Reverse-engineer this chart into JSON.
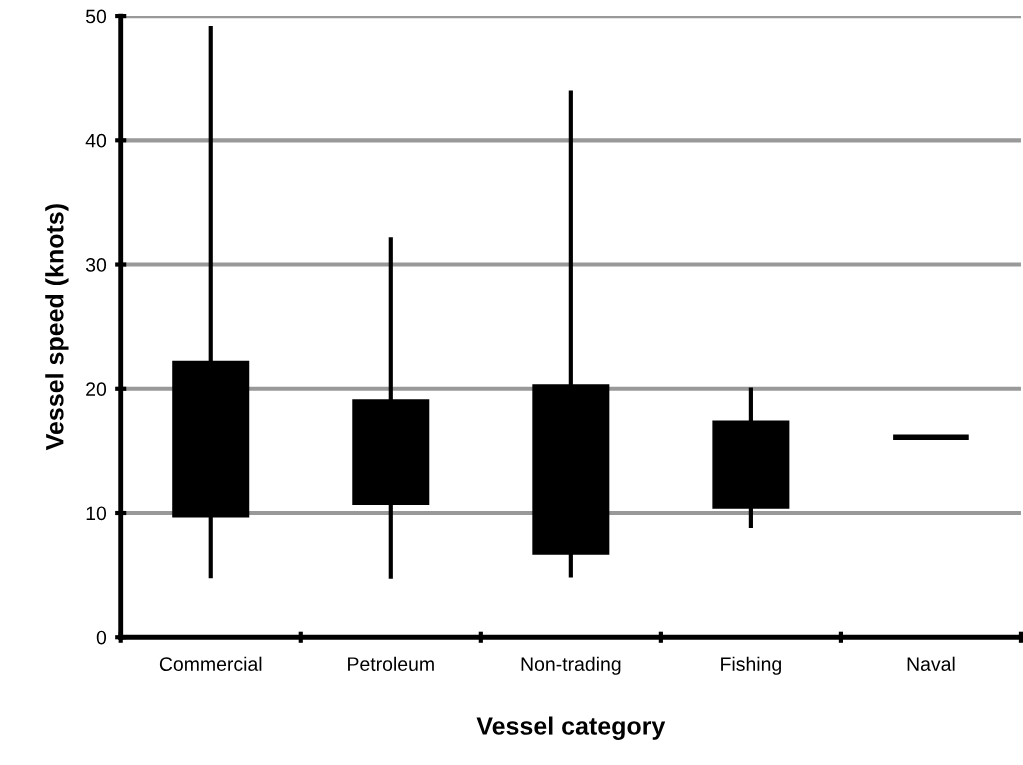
{
  "chart_data": {
    "type": "candlestick",
    "xlabel": "Vessel category",
    "ylabel": "Vessel speed (knots)",
    "categories": [
      "Commercial",
      "Petroleum",
      "Non-trading",
      "Fishing",
      "Naval"
    ],
    "ohlc": [
      [
        22.2,
        49.2,
        4.75,
        9.7
      ],
      [
        19.1,
        32.2,
        4.7,
        10.7
      ],
      [
        20.3,
        44.0,
        4.8,
        6.7
      ],
      [
        17.4,
        20.1,
        8.8,
        10.4
      ],
      [
        16.1,
        16.1,
        16.1,
        16.1
      ]
    ],
    "color": "#000000",
    "ylim": [
      0,
      50
    ],
    "yticks": [
      0,
      10,
      20,
      30,
      40,
      50
    ],
    "grid": "y"
  }
}
